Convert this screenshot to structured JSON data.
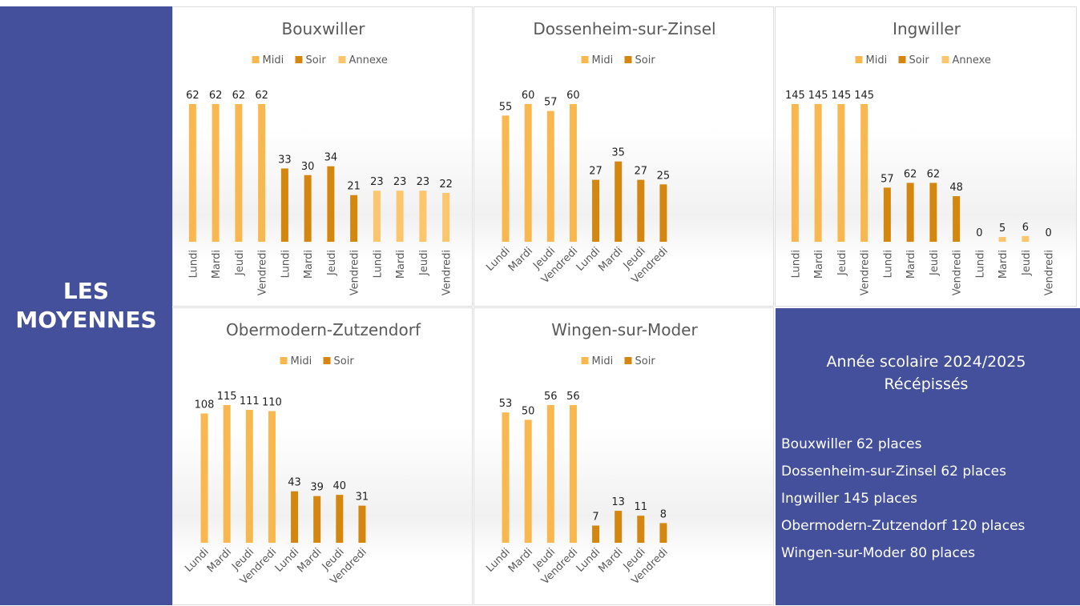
{
  "sidebar_title": "LES MOYENNES",
  "info": {
    "heading": "Année scolaire 2024/2025",
    "subheading": "Récépissés",
    "items": [
      "Bouxwiller 62 places",
      "Dossenheim-sur-Zinsel 62 places",
      "Ingwiller 145 places",
      "Obermodern-Zutzendorf 120 places",
      "Wingen-sur-Moder 80 places"
    ]
  },
  "chart_data": [
    {
      "type": "bar",
      "title": "Bouxwiller",
      "categories": [
        "Lundi",
        "Mardi",
        "Jeudi",
        "Vendredi",
        "Lundi",
        "Mardi",
        "Jeudi",
        "Vendredi",
        "Lundi",
        "Mardi",
        "Jeudi",
        "Vendredi"
      ],
      "series": [
        {
          "name": "Midi",
          "color": "#f9b84f",
          "values": [
            62,
            62,
            62,
            62,
            null,
            null,
            null,
            null,
            null,
            null,
            null,
            null
          ]
        },
        {
          "name": "Soir",
          "color": "#d4860f",
          "values": [
            null,
            null,
            null,
            null,
            33,
            30,
            34,
            21,
            null,
            null,
            null,
            null
          ]
        },
        {
          "name": "Annexe",
          "color": "#fbc66e",
          "values": [
            null,
            null,
            null,
            null,
            null,
            null,
            null,
            null,
            23,
            23,
            23,
            22
          ]
        }
      ]
    },
    {
      "type": "bar",
      "title": "Dossenheim-sur-Zinsel",
      "categories": [
        "Lundi",
        "Mardi",
        "Jeudi",
        "Vendredi",
        "Lundi",
        "Mardi",
        "Jeudi",
        "Vendredi"
      ],
      "series": [
        {
          "name": "Midi",
          "color": "#f9b84f",
          "values": [
            55,
            60,
            57,
            60,
            null,
            null,
            null,
            null
          ]
        },
        {
          "name": "Soir",
          "color": "#d4860f",
          "values": [
            null,
            null,
            null,
            null,
            27,
            35,
            27,
            25
          ]
        }
      ]
    },
    {
      "type": "bar",
      "title": "Ingwiller",
      "categories": [
        "Lundi",
        "Mardi",
        "Jeudi",
        "Vendredi",
        "Lundi",
        "Mardi",
        "Jeudi",
        "Vendredi",
        "Lundi",
        "Mardi",
        "Jeudi",
        "Vendredi"
      ],
      "series": [
        {
          "name": "Midi",
          "color": "#f9b84f",
          "values": [
            145,
            145,
            145,
            145,
            null,
            null,
            null,
            null,
            null,
            null,
            null,
            null
          ]
        },
        {
          "name": "Soir",
          "color": "#d4860f",
          "values": [
            null,
            null,
            null,
            null,
            57,
            62,
            62,
            48,
            null,
            null,
            null,
            null
          ]
        },
        {
          "name": "Annexe",
          "color": "#fbc66e",
          "values": [
            null,
            null,
            null,
            null,
            null,
            null,
            null,
            null,
            0,
            5,
            6,
            0
          ]
        }
      ]
    },
    {
      "type": "bar",
      "title": "Obermodern-Zutzendorf",
      "categories": [
        "Lundi",
        "Mardi",
        "Jeudi",
        "Vendredi",
        "Lundi",
        "Mardi",
        "Jeudi",
        "Vendredi"
      ],
      "series": [
        {
          "name": "Midi",
          "color": "#f9b84f",
          "values": [
            108,
            115,
            111,
            110,
            null,
            null,
            null,
            null
          ]
        },
        {
          "name": "Soir",
          "color": "#d4860f",
          "values": [
            null,
            null,
            null,
            null,
            43,
            39,
            40,
            31
          ]
        }
      ]
    },
    {
      "type": "bar",
      "title": "Wingen-sur-Moder",
      "categories": [
        "Lundi",
        "Mardi",
        "Jeudi",
        "Vendredi",
        "Lundi",
        "Mardi",
        "Jeudi",
        "Vendredi"
      ],
      "series": [
        {
          "name": "Midi",
          "color": "#f9b84f",
          "values": [
            53,
            50,
            56,
            56,
            null,
            null,
            null,
            null
          ]
        },
        {
          "name": "Soir",
          "color": "#d4860f",
          "values": [
            null,
            null,
            null,
            null,
            7,
            13,
            11,
            8
          ]
        }
      ]
    }
  ]
}
